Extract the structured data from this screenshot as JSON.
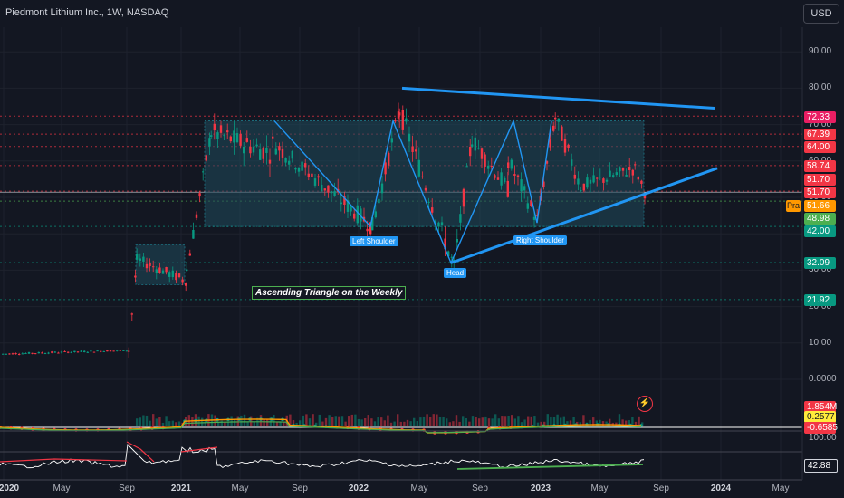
{
  "header": {
    "title": "Piedmont Lithium Inc., 1W, NASDAQ",
    "currency_button": "USD"
  },
  "y_axis_labels": [
    "90.00",
    "80.00",
    "70.00",
    "60.00",
    "50.00",
    "40.00",
    "30.00",
    "20.00",
    "10.00",
    "0.0000"
  ],
  "price_tags": [
    {
      "label": "72.33",
      "color": "#e91e63"
    },
    {
      "label": "67.39",
      "color": "#f23645"
    },
    {
      "label": "64.00",
      "color": "#f23645"
    },
    {
      "label": "58.74",
      "color": "#f23645"
    },
    {
      "label": "51.70",
      "color": "#f23645"
    },
    {
      "label": "51.70",
      "color": "#f23645"
    },
    {
      "label": "51.66",
      "color": "#ff9800"
    },
    {
      "label": "48.98",
      "color": "#4caf50"
    },
    {
      "label": "42.00",
      "color": "#089981"
    },
    {
      "label": "32.09",
      "color": "#089981"
    },
    {
      "label": "21.92",
      "color": "#089981"
    }
  ],
  "pra_tag": "Pra",
  "volume_tag": {
    "label": "1.854M",
    "color": "#f23645"
  },
  "macd_tags": [
    {
      "label": "0.2577",
      "color": "#ffeb3b"
    },
    {
      "label": "-0.6585",
      "color": "#f23645"
    }
  ],
  "rsi_tag": "42.88",
  "macd_axis_label": "100.00",
  "x_axis_labels": [
    {
      "label": "2020",
      "bold": true
    },
    {
      "label": "May",
      "bold": false
    },
    {
      "label": "Sep",
      "bold": false
    },
    {
      "label": "2021",
      "bold": true
    },
    {
      "label": "May",
      "bold": false
    },
    {
      "label": "Sep",
      "bold": false
    },
    {
      "label": "2022",
      "bold": true
    },
    {
      "label": "May",
      "bold": false
    },
    {
      "label": "Sep",
      "bold": false
    },
    {
      "label": "2023",
      "bold": true
    },
    {
      "label": "May",
      "bold": false
    },
    {
      "label": "Sep",
      "bold": false
    },
    {
      "label": "2024",
      "bold": true
    },
    {
      "label": "May",
      "bold": false
    }
  ],
  "pattern_labels": {
    "left_shoulder": "Left Shoulder",
    "head": "Head",
    "right_shoulder": "Right Shoulder"
  },
  "annotation": "Ascending Triangle on the Weekly",
  "colors": {
    "background": "#131722",
    "bull": "#089981",
    "bear": "#f23645",
    "trendline": "#2196f3",
    "zone_fill": "#1e4a5c",
    "rsi_line": "#ffffff",
    "rsi_divergence": "#4caf50"
  }
}
